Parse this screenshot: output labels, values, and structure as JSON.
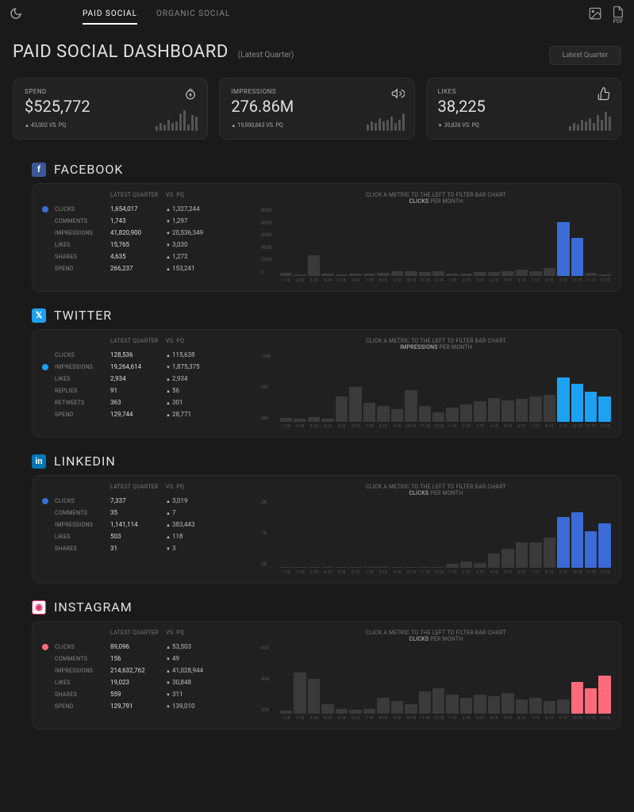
{
  "header": {
    "tabs": [
      "PAID SOCIAL",
      "ORGANIC SOCIAL"
    ],
    "active_tab": 0,
    "pdf_label": "PDF"
  },
  "title": {
    "main": "PAID SOCIAL DASHBOARD",
    "sub": "(Latest Quarter)",
    "filter": "Latest Quarter"
  },
  "kpis": [
    {
      "label": "SPEND",
      "value": "$525,772",
      "delta": "43,002 VS. PQ",
      "dir": "up",
      "icon": "money",
      "spark": [
        6,
        10,
        8,
        14,
        10,
        12,
        22,
        26,
        8,
        20,
        18
      ]
    },
    {
      "label": "IMPRESSIONS",
      "value": "276.86M",
      "delta": "19,000,663 VS. PQ",
      "dir": "up",
      "icon": "megaphone",
      "spark": [
        8,
        12,
        10,
        16,
        12,
        14,
        18,
        10,
        14,
        22
      ]
    },
    {
      "label": "LIKES",
      "value": "38,225",
      "delta": "30,826 VS. PQ",
      "dir": "down",
      "icon": "thumb",
      "spark": [
        6,
        10,
        8,
        14,
        12,
        16,
        10,
        20,
        14,
        24,
        18
      ]
    }
  ],
  "platforms": [
    {
      "name": "FACEBOOK",
      "badge_bg": "#3b5998",
      "badge_fg": "#ffffff",
      "badge_char": "f",
      "dot_color": "#3b6bd6",
      "selected_index": 0,
      "chart_title_prefix": "CLICK A METRIC TO THE LEFT TO FILTER BAR CHART",
      "chart_metric": "CLICKS",
      "chart_suffix": "PER MONTH",
      "y_ticks": [
        "900K",
        "800K",
        "600K",
        "400K",
        "200K",
        "0"
      ],
      "bar_color_muted": "#3a3a3a",
      "bar_color_highlight": "#3b6bd6",
      "metrics": [
        {
          "name": "CLICKS",
          "value": "1,654,017",
          "delta": "1,327,244",
          "dir": "up"
        },
        {
          "name": "COMMENTS",
          "value": "1,743",
          "delta": "1,297",
          "dir": "down"
        },
        {
          "name": "IMPRESSIONS",
          "value": "41,820,900",
          "delta": "20,536,349",
          "dir": "down"
        },
        {
          "name": "LIKES",
          "value": "15,765",
          "delta": "3,030",
          "dir": "down"
        },
        {
          "name": "SHARES",
          "value": "4,635",
          "delta": "1,272",
          "dir": "up"
        },
        {
          "name": "SPEND",
          "value": "266,237",
          "delta": "153,241",
          "dir": "up"
        }
      ],
      "bars": [
        {
          "v": 5,
          "hl": false
        },
        {
          "v": 3,
          "hl": false
        },
        {
          "v": 32,
          "hl": false
        },
        {
          "v": 4,
          "hl": false
        },
        {
          "v": 3,
          "hl": false
        },
        {
          "v": 4,
          "hl": false
        },
        {
          "v": 4,
          "hl": false
        },
        {
          "v": 5,
          "hl": false
        },
        {
          "v": 7,
          "hl": false
        },
        {
          "v": 8,
          "hl": false
        },
        {
          "v": 6,
          "hl": false
        },
        {
          "v": 7,
          "hl": false
        },
        {
          "v": 4,
          "hl": false
        },
        {
          "v": 4,
          "hl": false
        },
        {
          "v": 6,
          "hl": false
        },
        {
          "v": 6,
          "hl": false
        },
        {
          "v": 8,
          "hl": false
        },
        {
          "v": 10,
          "hl": false
        },
        {
          "v": 8,
          "hl": false
        },
        {
          "v": 12,
          "hl": false
        },
        {
          "v": 85,
          "hl": true
        },
        {
          "v": 60,
          "hl": true
        },
        {
          "v": 5,
          "hl": false
        },
        {
          "v": 3,
          "hl": false
        }
      ],
      "x_labels": [
        "1-18",
        "2-18",
        "3-18",
        "4-18",
        "5-18",
        "6-18",
        "7-18",
        "8-18",
        "9-18",
        "10-18",
        "11-18",
        "12-18",
        "1-19",
        "2-19",
        "3-19",
        "4-19",
        "5-19",
        "6-19",
        "7-19",
        "8-19",
        "9-19",
        "10-19",
        "11-19",
        "12-19"
      ]
    },
    {
      "name": "TWITTER",
      "badge_bg": "#1da1f2",
      "badge_fg": "#ffffff",
      "badge_char": "𝕏",
      "dot_color": "#1da1f2",
      "selected_index": 1,
      "chart_title_prefix": "CLICK A METRIC TO THE LEFT TO FILTER BAR CHART",
      "chart_metric": "IMPRESSIONS",
      "chart_suffix": "PER MONTH",
      "y_ticks": [
        "10M",
        "5M",
        "0M"
      ],
      "bar_color_muted": "#3a3a3a",
      "bar_color_highlight": "#1da1f2",
      "metrics": [
        {
          "name": "CLICKS",
          "value": "128,536",
          "delta": "115,638",
          "dir": "up"
        },
        {
          "name": "IMPRESSIONS",
          "value": "19,264,614",
          "delta": "1,875,375",
          "dir": "down"
        },
        {
          "name": "LIKES",
          "value": "2,934",
          "delta": "2,934",
          "dir": "up"
        },
        {
          "name": "REPLIES",
          "value": "91",
          "delta": "56",
          "dir": "up"
        },
        {
          "name": "RETWEETS",
          "value": "363",
          "delta": "301",
          "dir": "up"
        },
        {
          "name": "SPEND",
          "value": "129,744",
          "delta": "28,771",
          "dir": "up"
        }
      ],
      "bars": [
        {
          "v": 6,
          "hl": false
        },
        {
          "v": 5,
          "hl": false
        },
        {
          "v": 8,
          "hl": false
        },
        {
          "v": 5,
          "hl": false
        },
        {
          "v": 40,
          "hl": false
        },
        {
          "v": 55,
          "hl": false
        },
        {
          "v": 30,
          "hl": false
        },
        {
          "v": 25,
          "hl": false
        },
        {
          "v": 20,
          "hl": false
        },
        {
          "v": 50,
          "hl": false
        },
        {
          "v": 25,
          "hl": false
        },
        {
          "v": 15,
          "hl": false
        },
        {
          "v": 22,
          "hl": false
        },
        {
          "v": 28,
          "hl": false
        },
        {
          "v": 32,
          "hl": false
        },
        {
          "v": 38,
          "hl": false
        },
        {
          "v": 34,
          "hl": false
        },
        {
          "v": 36,
          "hl": false
        },
        {
          "v": 40,
          "hl": false
        },
        {
          "v": 42,
          "hl": false
        },
        {
          "v": 70,
          "hl": true
        },
        {
          "v": 60,
          "hl": true
        },
        {
          "v": 48,
          "hl": true
        },
        {
          "v": 40,
          "hl": true
        }
      ],
      "x_labels": [
        "1-18",
        "2-18",
        "3-18",
        "4-18",
        "5-18",
        "6-18",
        "7-18",
        "8-18",
        "9-18",
        "10-18",
        "11-18",
        "12-18",
        "1-19",
        "2-19",
        "3-19",
        "4-19",
        "5-19",
        "6-19",
        "7-19",
        "8-19",
        "9-19",
        "10-19",
        "11-19",
        "12-19"
      ]
    },
    {
      "name": "LINKEDIN",
      "badge_bg": "#0077b5",
      "badge_fg": "#ffffff",
      "badge_char": "in",
      "dot_color": "#3b6bd6",
      "selected_index": 0,
      "chart_title_prefix": "CLICK A METRIC TO THE LEFT TO FILTER BAR CHART",
      "chart_metric": "CLICKS",
      "chart_suffix": "PER MONTH",
      "y_ticks": [
        "2K",
        "1K",
        "0K"
      ],
      "bar_color_muted": "#3a3a3a",
      "bar_color_highlight": "#3b6bd6",
      "metrics": [
        {
          "name": "CLICKS",
          "value": "7,337",
          "delta": "3,019",
          "dir": "up"
        },
        {
          "name": "COMMENTS",
          "value": "35",
          "delta": "7",
          "dir": "up"
        },
        {
          "name": "IMPRESSIONS",
          "value": "1,141,114",
          "delta": "383,443",
          "dir": "up"
        },
        {
          "name": "LIKES",
          "value": "503",
          "delta": "118",
          "dir": "up"
        },
        {
          "name": "SHARES",
          "value": "31",
          "delta": "3",
          "dir": "down"
        }
      ],
      "bars": [
        {
          "v": 1,
          "hl": false
        },
        {
          "v": 1,
          "hl": false
        },
        {
          "v": 1,
          "hl": false
        },
        {
          "v": 1,
          "hl": false
        },
        {
          "v": 1,
          "hl": false
        },
        {
          "v": 1,
          "hl": false
        },
        {
          "v": 1,
          "hl": false
        },
        {
          "v": 1,
          "hl": false
        },
        {
          "v": 1,
          "hl": false
        },
        {
          "v": 1,
          "hl": false
        },
        {
          "v": 1,
          "hl": false
        },
        {
          "v": 1,
          "hl": false
        },
        {
          "v": 6,
          "hl": false
        },
        {
          "v": 10,
          "hl": false
        },
        {
          "v": 8,
          "hl": false
        },
        {
          "v": 22,
          "hl": false
        },
        {
          "v": 30,
          "hl": false
        },
        {
          "v": 40,
          "hl": false
        },
        {
          "v": 40,
          "hl": false
        },
        {
          "v": 48,
          "hl": false
        },
        {
          "v": 80,
          "hl": true
        },
        {
          "v": 88,
          "hl": true
        },
        {
          "v": 58,
          "hl": true
        },
        {
          "v": 70,
          "hl": true
        }
      ],
      "x_labels": [
        "1-18",
        "2-18",
        "3-18",
        "4-18",
        "5-18",
        "6-18",
        "7-18",
        "8-18",
        "9-18",
        "10-18",
        "11-18",
        "12-18",
        "1-19",
        "2-19",
        "3-19",
        "4-19",
        "5-19",
        "6-19",
        "7-19",
        "8-19",
        "9-19",
        "10-19",
        "11-19",
        "12-19"
      ]
    },
    {
      "name": "INSTAGRAM",
      "badge_bg": "#ffffff",
      "badge_fg": "#e1306c",
      "badge_char": "◉",
      "dot_color": "#ff6b7a",
      "selected_index": 0,
      "chart_title_prefix": "CLICK A METRIC TO THE LEFT TO FILTER BAR CHART",
      "chart_metric": "CLICKS",
      "chart_suffix": "PER MONTH",
      "y_ticks": [
        "60K",
        "40K",
        "20K"
      ],
      "bar_color_muted": "#3a3a3a",
      "bar_color_highlight": "#ff6b7a",
      "metrics": [
        {
          "name": "CLICKS",
          "value": "89,096",
          "delta": "53,503",
          "dir": "up"
        },
        {
          "name": "COMMENTS",
          "value": "156",
          "delta": "49",
          "dir": "down"
        },
        {
          "name": "IMPRESSIONS",
          "value": "214,632,762",
          "delta": "41,028,944",
          "dir": "up"
        },
        {
          "name": "LIKES",
          "value": "19,023",
          "delta": "30,848",
          "dir": "down"
        },
        {
          "name": "SHARES",
          "value": "559",
          "delta": "311",
          "dir": "down"
        },
        {
          "name": "SPEND",
          "value": "129,791",
          "delta": "139,010",
          "dir": "down"
        }
      ],
      "bars": [
        {
          "v": 5,
          "hl": false
        },
        {
          "v": 65,
          "hl": false
        },
        {
          "v": 55,
          "hl": false
        },
        {
          "v": 15,
          "hl": false
        },
        {
          "v": 8,
          "hl": false
        },
        {
          "v": 6,
          "hl": false
        },
        {
          "v": 8,
          "hl": false
        },
        {
          "v": 25,
          "hl": false
        },
        {
          "v": 20,
          "hl": false
        },
        {
          "v": 15,
          "hl": false
        },
        {
          "v": 35,
          "hl": false
        },
        {
          "v": 40,
          "hl": false
        },
        {
          "v": 30,
          "hl": false
        },
        {
          "v": 25,
          "hl": false
        },
        {
          "v": 30,
          "hl": false
        },
        {
          "v": 28,
          "hl": false
        },
        {
          "v": 32,
          "hl": false
        },
        {
          "v": 22,
          "hl": false
        },
        {
          "v": 25,
          "hl": false
        },
        {
          "v": 20,
          "hl": false
        },
        {
          "v": 22,
          "hl": false
        },
        {
          "v": 50,
          "hl": true
        },
        {
          "v": 40,
          "hl": true
        },
        {
          "v": 60,
          "hl": true
        }
      ],
      "x_labels": [
        "1-18",
        "2-18",
        "3-18",
        "4-18",
        "5-18",
        "6-18",
        "7-18",
        "8-18",
        "9-18",
        "10-18",
        "11-18",
        "12-18",
        "1-19",
        "2-19",
        "3-19",
        "4-19",
        "5-19",
        "6-19",
        "7-19",
        "8-19",
        "9-19",
        "10-19",
        "11-19",
        "12-19"
      ]
    }
  ],
  "labels": {
    "latest_quarter": "LATEST QUARTER",
    "vs_pq": "VS. PQ"
  }
}
